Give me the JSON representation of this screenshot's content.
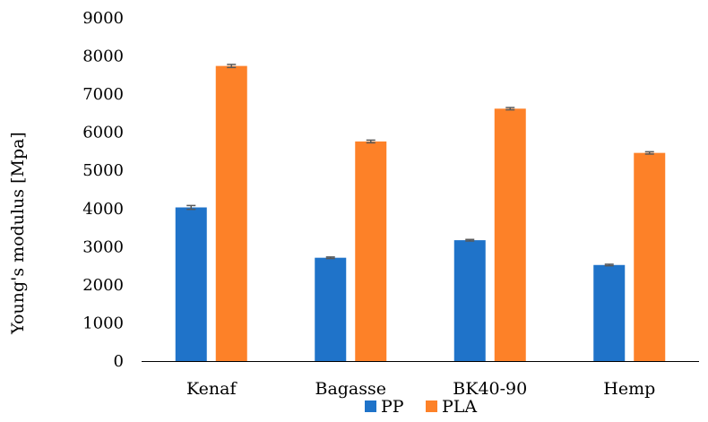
{
  "chart_data": {
    "type": "bar",
    "title": "",
    "xlabel": "",
    "ylabel": "Young's modulus [Mpa]",
    "ylim": [
      0,
      9000
    ],
    "yticks": [
      0,
      1000,
      2000,
      3000,
      4000,
      5000,
      6000,
      7000,
      8000,
      9000
    ],
    "ytick_labels": [
      "0",
      "1000",
      "2000",
      "3000",
      "4000",
      "5000",
      "6000",
      "7000",
      "8000",
      "9000"
    ],
    "categories": [
      "Kenaf",
      "Bagasse",
      "BK40-90",
      "Hemp"
    ],
    "series": [
      {
        "name": "PP",
        "color": "#1f73c9",
        "values": [
          4030,
          2710,
          3170,
          2520
        ],
        "errors": [
          50,
          20,
          20,
          20
        ]
      },
      {
        "name": "PLA",
        "color": "#fd8128",
        "values": [
          7740,
          5760,
          6620,
          5460
        ],
        "errors": [
          40,
          35,
          30,
          30
        ]
      }
    ],
    "legend_position": "bottom-center",
    "grid": false
  }
}
